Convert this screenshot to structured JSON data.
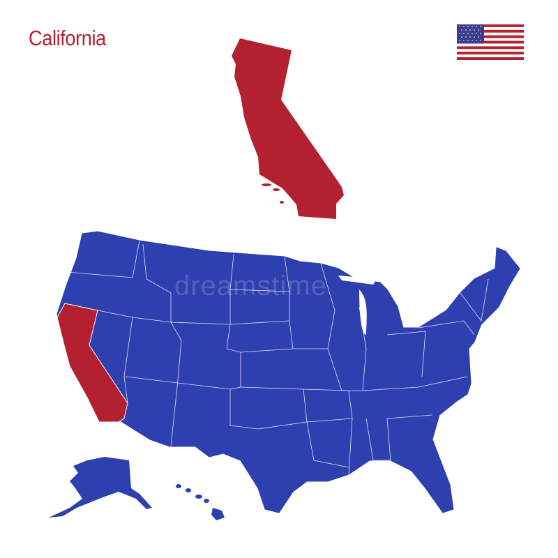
{
  "title": "California",
  "watermark": "dreamstime",
  "flag": {
    "name": "us-flag-icon",
    "stripe_red": "#b3202f",
    "canton_blue": "#3c3b8e"
  },
  "colors": {
    "highlight": "#b32030",
    "states": "#2e3fb0",
    "border": "#ffffff"
  },
  "highlighted_state": "California"
}
